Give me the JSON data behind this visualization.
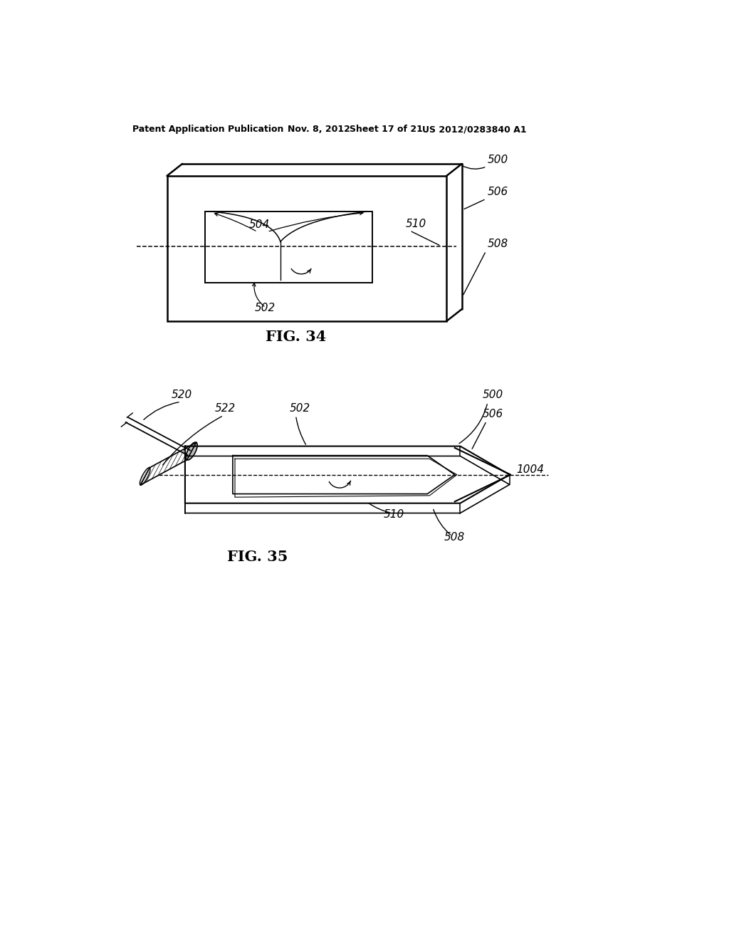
{
  "bg_color": "#ffffff",
  "line_color": "#000000",
  "header_text": "Patent Application Publication",
  "header_date": "Nov. 8, 2012",
  "header_sheet": "Sheet 17 of 21",
  "header_patent": "US 2012/0283840 A1",
  "fig34_label": "FIG. 34",
  "fig35_label": "FIG. 35",
  "labels": {
    "500_top": "500",
    "506_top": "506",
    "508_top": "508",
    "504": "504",
    "510_top": "510",
    "502_top": "502",
    "520": "520",
    "522": "522",
    "502_bot": "502",
    "500_bot": "500",
    "506_bot": "506",
    "1004": "1004",
    "510_bot": "510",
    "508_bot": "508"
  }
}
